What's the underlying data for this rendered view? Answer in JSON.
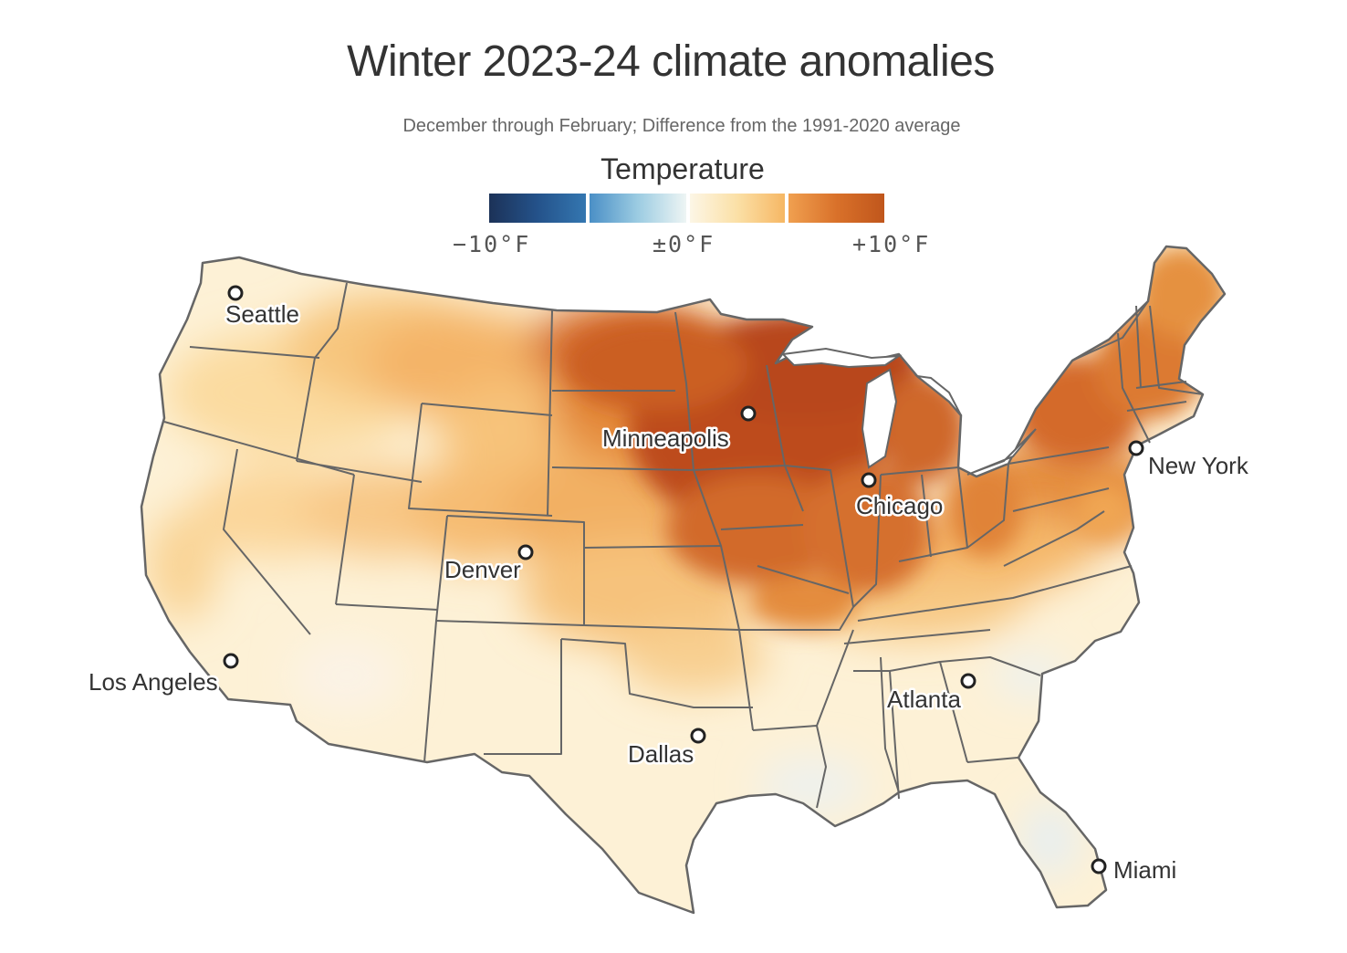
{
  "title": "Winter 2023-24 climate anomalies",
  "subtitle": "December through February; Difference from the 1991-2020 average",
  "legend": {
    "title": "Temperature",
    "ticks": {
      "low": "−10°F",
      "mid": "±0°F",
      "high": "+10°F"
    },
    "colors": [
      "#1d3560",
      "#2e6ca8",
      "#5aa0d0",
      "#e8f2f6",
      "#fbf3de",
      "#f7b760",
      "#e9873a",
      "#c45a1d"
    ]
  },
  "anomaly_palette": {
    "neutral": "#fdf1d6",
    "light_warm": "#fbdca2",
    "warm": "#f3b062",
    "hot": "#df7a30",
    "hottest": "#b8491c",
    "cool": "#e3eef4"
  },
  "border_color": "#666666",
  "cities": [
    {
      "name": "Seattle"
    },
    {
      "name": "Minneapolis"
    },
    {
      "name": "New York"
    },
    {
      "name": "Chicago"
    },
    {
      "name": "Denver"
    },
    {
      "name": "Los Angeles"
    },
    {
      "name": "Atlanta"
    },
    {
      "name": "Dallas"
    },
    {
      "name": "Miami"
    }
  ]
}
